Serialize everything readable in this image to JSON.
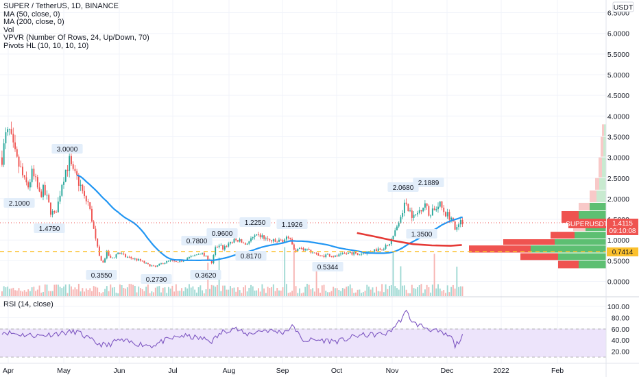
{
  "legend": {
    "title": "SUPER / TetherUS, 1D, BINANCE",
    "ma50": "MA (50, close, 0)",
    "ma200": "MA (200, close, 0)",
    "vol": "Vol",
    "vpvr": "VPVR (Number Of Rows, 24, Up/Down, 70)",
    "pivots": "Pivots HL (10, 10, 10, 10)"
  },
  "rsi_legend": "RSI (14, close)",
  "price_axis": {
    "currency": "USDT",
    "ticks": [
      "6.5000",
      "6.0000",
      "5.5000",
      "5.0000",
      "4.5000",
      "4.0000",
      "3.5000",
      "3.0000",
      "2.5000",
      "2.0000",
      "1.5000",
      "1.0000",
      "0.5000",
      "0.0000"
    ]
  },
  "rsi_axis": {
    "ticks": [
      "100.00",
      "80.00",
      "60.00",
      "40.00",
      "20.00"
    ]
  },
  "time_axis": {
    "labels": [
      "Apr",
      "May",
      "Jun",
      "Jul",
      "Aug",
      "Sep",
      "Oct",
      "Nov",
      "Dec",
      "2022",
      "Feb"
    ]
  },
  "current_price": {
    "symbol": "SUPERUSDT",
    "price": "1.4115",
    "countdown": "09:10:08",
    "poc": "0.7414",
    "color": "#ef5350"
  },
  "pivots": [
    "3.0000",
    "2.1000",
    "1.4750",
    "0.3550",
    "0.2730",
    "0.7800",
    "0.9600",
    "0.3620",
    "1.2250",
    "0.8170",
    "1.1926",
    "0.5344",
    "2.0680",
    "2.1889",
    "1.3500"
  ],
  "colors": {
    "up": "#26a69a",
    "down": "#ef5350",
    "ma50": "#2196f3",
    "ma200": "#e53935",
    "rsi": "#7e57c2",
    "rsi_band": "#ede4fb",
    "poc_line": "#fbc02d"
  },
  "chart_data": {
    "type": "candlestick",
    "symbol": "SUPER / TetherUS",
    "interval": "1D",
    "exchange": "BINANCE",
    "y_range": [
      0,
      6.5
    ],
    "close_points": [
      [
        "Apr",
        3.0
      ],
      [
        "Apr (mid)",
        2.1
      ],
      [
        "May",
        2.75
      ],
      [
        "May (mid)",
        1.5
      ],
      [
        "Jun",
        0.55
      ],
      [
        "Jun (mid)",
        0.4
      ],
      [
        "Jul",
        0.45
      ],
      [
        "Jul (late)",
        0.8
      ],
      [
        "Aug",
        0.95
      ],
      [
        "Aug (mid)",
        1.05
      ],
      [
        "Sep",
        1.05
      ],
      [
        "Sep (late)",
        0.6
      ],
      [
        "Oct",
        0.7
      ],
      [
        "Nov",
        1.8
      ],
      [
        "Nov (late)",
        1.55
      ],
      [
        "Dec",
        1.4115
      ]
    ],
    "ma50_range": [
      [
        "May",
        2.5
      ],
      [
        "Jul",
        0.6
      ],
      [
        "Sep",
        0.9
      ],
      [
        "Dec",
        1.5
      ]
    ],
    "ma200_range": [
      [
        "Oct",
        1.2
      ],
      [
        "Dec",
        0.9
      ]
    ],
    "rsi_range": [
      0,
      100
    ],
    "rsi_levels": [
      30,
      70
    ],
    "rsi_points": [
      [
        "Apr",
        50
      ],
      [
        "May",
        45
      ],
      [
        "Jun",
        28
      ],
      [
        "Jul",
        42
      ],
      [
        "Aug",
        55
      ],
      [
        "Sep",
        52
      ],
      [
        "Oct",
        50
      ],
      [
        "Nov",
        88
      ],
      [
        "Dec",
        45
      ]
    ],
    "vpvr_poc": 0.7414
  }
}
